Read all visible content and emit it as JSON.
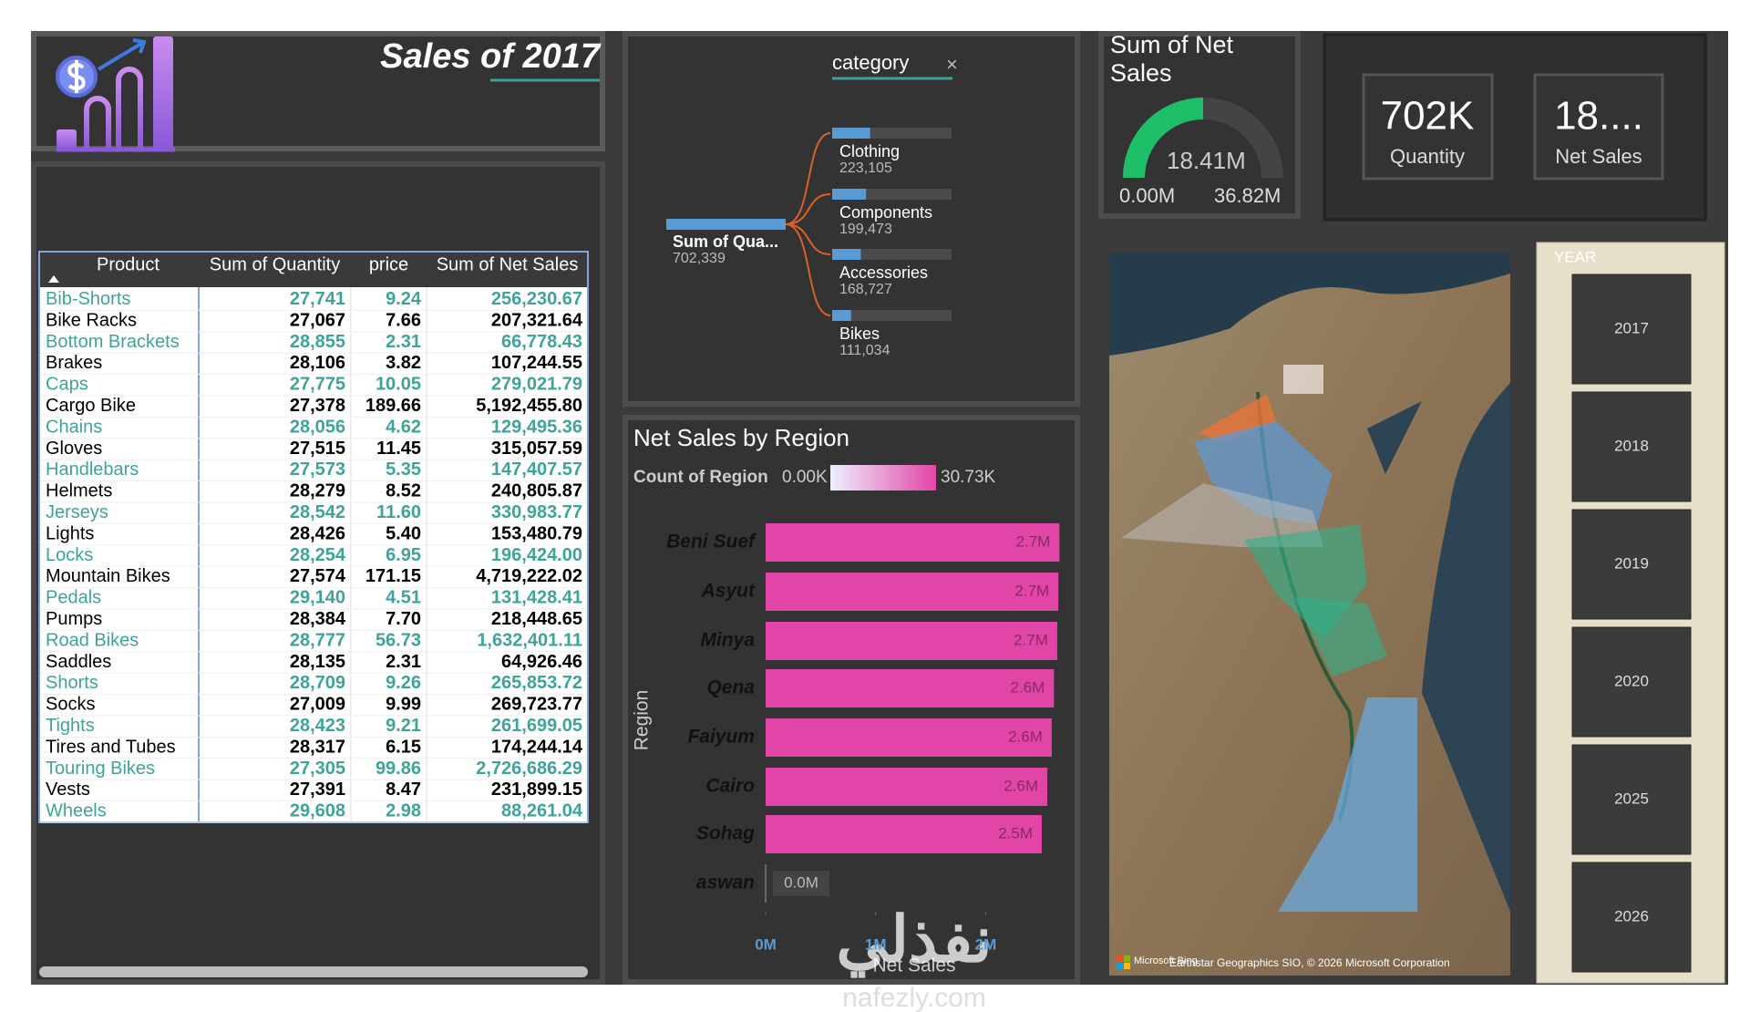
{
  "header": {
    "title": "Sales of 2017"
  },
  "table": {
    "columns": [
      "Product",
      "Sum of Quantity",
      "price",
      "Sum of Net Sales"
    ],
    "rows": [
      [
        "Bib-Shorts",
        "27,741",
        "9.24",
        "256,230.67"
      ],
      [
        "Bike Racks",
        "27,067",
        "7.66",
        "207,321.64"
      ],
      [
        "Bottom Brackets",
        "28,855",
        "2.31",
        "66,778.43"
      ],
      [
        "Brakes",
        "28,106",
        "3.82",
        "107,244.55"
      ],
      [
        "Caps",
        "27,775",
        "10.05",
        "279,021.79"
      ],
      [
        "Cargo Bike",
        "27,378",
        "189.66",
        "5,192,455.80"
      ],
      [
        "Chains",
        "28,056",
        "4.62",
        "129,495.36"
      ],
      [
        "Gloves",
        "27,515",
        "11.45",
        "315,057.59"
      ],
      [
        "Handlebars",
        "27,573",
        "5.35",
        "147,407.57"
      ],
      [
        "Helmets",
        "28,279",
        "8.52",
        "240,805.87"
      ],
      [
        "Jerseys",
        "28,542",
        "11.60",
        "330,983.77"
      ],
      [
        "Lights",
        "28,426",
        "5.40",
        "153,480.79"
      ],
      [
        "Locks",
        "28,254",
        "6.95",
        "196,424.00"
      ],
      [
        "Mountain Bikes",
        "27,574",
        "171.15",
        "4,719,222.02"
      ],
      [
        "Pedals",
        "29,140",
        "4.51",
        "131,428.41"
      ],
      [
        "Pumps",
        "28,384",
        "7.70",
        "218,448.65"
      ],
      [
        "Road Bikes",
        "28,777",
        "56.73",
        "1,632,401.11"
      ],
      [
        "Saddles",
        "28,135",
        "2.31",
        "64,926.46"
      ],
      [
        "Shorts",
        "28,709",
        "9.26",
        "265,853.72"
      ],
      [
        "Socks",
        "27,009",
        "9.99",
        "269,723.77"
      ],
      [
        "Tights",
        "28,423",
        "9.21",
        "261,699.05"
      ],
      [
        "Tires and Tubes",
        "28,317",
        "6.15",
        "174,244.14"
      ],
      [
        "Touring Bikes",
        "27,305",
        "99.86",
        "2,726,686.29"
      ],
      [
        "Vests",
        "27,391",
        "8.47",
        "231,899.15"
      ],
      [
        "Wheels",
        "29,608",
        "2.98",
        "88,261.04"
      ]
    ]
  },
  "decomposition_tree": {
    "slicer": "category",
    "close": "×",
    "root": {
      "label": "Sum of Qua...",
      "value": 702339,
      "value_label": "702,339"
    },
    "children": [
      {
        "label": "Clothing",
        "value": 223105,
        "value_label": "223,105"
      },
      {
        "label": "Components",
        "value": 199473,
        "value_label": "199,473"
      },
      {
        "label": "Accessories",
        "value": 168727,
        "value_label": "168,727"
      },
      {
        "label": "Bikes",
        "value": 111034,
        "value_label": "111,034"
      }
    ]
  },
  "gauge": {
    "title": "Sum of Net Sales",
    "value": 18.41,
    "value_label": "18.41M",
    "min": 0,
    "min_label": "0.00M",
    "max": 36.82,
    "max_label": "36.82M"
  },
  "cards": [
    {
      "value": "702K",
      "label": "Quantity"
    },
    {
      "value": "18....",
      "label": "Net Sales"
    }
  ],
  "chart_data": {
    "type": "bar",
    "orientation": "horizontal",
    "title": "Net Sales by Region",
    "legend": {
      "title": "Count of Region",
      "min_label": "0.00K",
      "max_label": "30.73K"
    },
    "x_label": "Net Sales",
    "y_label": "Region",
    "categories": [
      "Beni Suef",
      "Asyut",
      "Minya",
      "Qena",
      "Faiyum",
      "Cairo",
      "Sohag",
      "aswan"
    ],
    "values": [
      2.67,
      2.66,
      2.65,
      2.62,
      2.6,
      2.56,
      2.51,
      0
    ],
    "value_labels": [
      "2.7M",
      "2.7M",
      "2.7M",
      "2.6M",
      "2.6M",
      "2.6M",
      "2.5M",
      "0.0M"
    ],
    "color": "#e245a8",
    "xlim": [
      0,
      2.75
    ],
    "xticks": [
      {
        "value": 0,
        "label": "0M"
      },
      {
        "value": 1,
        "label": "1M"
      },
      {
        "value": 2,
        "label": "2M"
      }
    ]
  },
  "map": {
    "logo": "Microsoft Bing",
    "attribution": "Earthstar Geographics SIO, © 2026 Microsoft Corporation"
  },
  "year_slicer": {
    "title": "YEAR",
    "years": [
      "2017",
      "2018",
      "2019",
      "2020",
      "2025",
      "2026"
    ]
  },
  "watermark": {
    "arabic": "نفذلي",
    "site": "nafezly.com"
  }
}
